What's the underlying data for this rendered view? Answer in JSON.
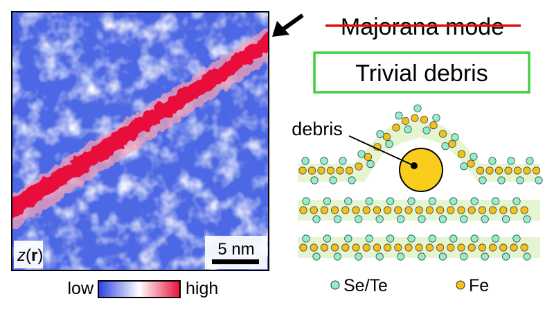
{
  "image_panel": {
    "axis_label_var": "z",
    "axis_label_arg": "r",
    "scalebar_label": "5 nm"
  },
  "colorbar": {
    "low_label": "low",
    "high_label": "high",
    "colors": [
      "#2b3fe0",
      "#ffffff",
      "#e8103a"
    ]
  },
  "right_panel": {
    "struck_title": "Majorana mode",
    "box_title": "Trivial debris",
    "debris_label": "debris",
    "legend": [
      {
        "label": "Se/Te",
        "color": "#8ff0cf"
      },
      {
        "label": "Fe",
        "color": "#f2c21b"
      }
    ],
    "strike_color": "#e01010",
    "box_color": "#3fd13f",
    "band_color": "#e4f5cf",
    "debris_color": "#f8cd1c"
  }
}
